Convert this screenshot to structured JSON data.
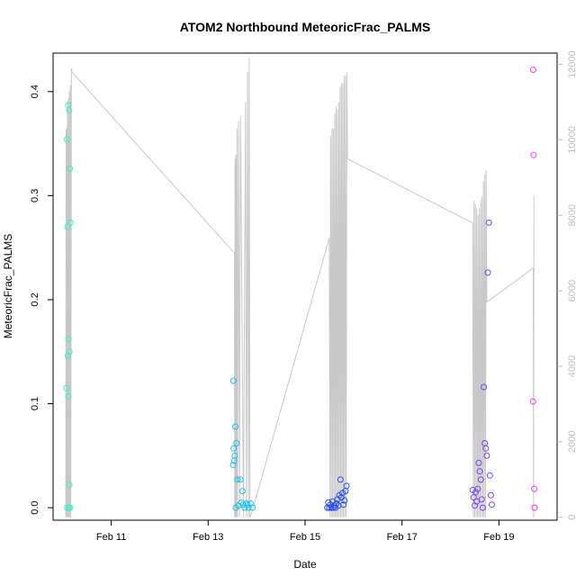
{
  "chart_data": {
    "type": "scatter",
    "title": "ATOM2 Northbound MeteoricFrac_PALMS",
    "xlabel": "Date",
    "ylabel": "MeteoricFrac_PALMS",
    "x_ticks": [
      "Feb 11",
      "Feb 13",
      "Feb 15",
      "Feb 17",
      "Feb 19"
    ],
    "y_ticks": [
      "0.0",
      "0.1",
      "0.2",
      "0.3",
      "0.4"
    ],
    "y2_ticks": [
      "0",
      "2000",
      "4000",
      "6000",
      "8000",
      "10000",
      "12000"
    ],
    "xlim": [
      "2017-02-09 19:12",
      "2017-02-20 04:48"
    ],
    "ylim": [
      -0.012,
      0.437
    ],
    "y2lim": [
      -80,
      12300
    ],
    "grid": false,
    "line_color": "#c8c8c8",
    "secondary_axis_color": "#bdbdbd",
    "series": [
      {
        "color": "#35f2c8",
        "points": [
          [
            "2017-02-10 02:00",
            0.354
          ],
          [
            "2017-02-10 02:20",
            0.27
          ],
          [
            "2017-02-10 02:40",
            0.387
          ],
          [
            "2017-02-10 03:10",
            0.382
          ],
          [
            "2017-02-10 03:30",
            0.326
          ],
          [
            "2017-02-10 03:50",
            0.274
          ],
          [
            "2017-02-10 02:50",
            0.162
          ],
          [
            "2017-02-10 03:20",
            0.15
          ],
          [
            "2017-02-10 02:30",
            0.146
          ],
          [
            "2017-02-10 01:50",
            0.115
          ],
          [
            "2017-02-10 02:45",
            0.107
          ],
          [
            "2017-02-10 03:15",
            0.022
          ],
          [
            "2017-02-10 02:10",
            0.0
          ],
          [
            "2017-02-10 03:00",
            0.0
          ],
          [
            "2017-02-10 03:40",
            0.0
          ]
        ]
      },
      {
        "color": "#19c3ec",
        "points": [
          [
            "2017-02-13 12:30",
            0.122
          ],
          [
            "2017-02-13 13:30",
            0.078
          ],
          [
            "2017-02-13 14:00",
            0.062
          ],
          [
            "2017-02-13 12:40",
            0.057
          ],
          [
            "2017-02-13 13:10",
            0.05
          ],
          [
            "2017-02-13 12:50",
            0.045
          ],
          [
            "2017-02-13 12:20",
            0.041
          ],
          [
            "2017-02-13 14:30",
            0.027
          ],
          [
            "2017-02-13 16:00",
            0.027
          ],
          [
            "2017-02-13 17:00",
            0.016
          ],
          [
            "2017-02-13 13:40",
            0.0
          ],
          [
            "2017-02-13 15:00",
            0.002
          ],
          [
            "2017-02-13 16:20",
            0.005
          ],
          [
            "2017-02-13 17:20",
            0.003
          ],
          [
            "2017-02-13 18:00",
            0.0
          ],
          [
            "2017-02-13 18:40",
            0.004
          ],
          [
            "2017-02-13 19:30",
            0.003
          ],
          [
            "2017-02-13 20:00",
            0.0
          ],
          [
            "2017-02-13 21:00",
            0.004
          ],
          [
            "2017-02-13 22:00",
            0.0
          ]
        ]
      },
      {
        "color": "#2a4df0",
        "points": [
          [
            "2017-02-15 11:00",
            0.0
          ],
          [
            "2017-02-15 11:30",
            0.005
          ],
          [
            "2017-02-15 12:00",
            0.0
          ],
          [
            "2017-02-15 12:30",
            0.003
          ],
          [
            "2017-02-15 13:00",
            0.0
          ],
          [
            "2017-02-15 13:30",
            0.006
          ],
          [
            "2017-02-15 14:00",
            0.0
          ],
          [
            "2017-02-15 14:30",
            0.002
          ],
          [
            "2017-02-15 15:00",
            0.0
          ],
          [
            "2017-02-15 15:30",
            0.004
          ],
          [
            "2017-02-15 16:00",
            0.008
          ],
          [
            "2017-02-15 16:30",
            0.002
          ],
          [
            "2017-02-15 17:00",
            0.012
          ],
          [
            "2017-02-15 17:30",
            0.027
          ],
          [
            "2017-02-15 18:00",
            0.01
          ],
          [
            "2017-02-15 18:30",
            0.014
          ],
          [
            "2017-02-15 19:00",
            0.003
          ],
          [
            "2017-02-15 19:30",
            0.007
          ],
          [
            "2017-02-15 20:00",
            0.016
          ],
          [
            "2017-02-15 20:30",
            0.021
          ]
        ]
      },
      {
        "color": "#7b3df0",
        "points": [
          [
            "2017-02-18 11:00",
            0.017
          ],
          [
            "2017-02-18 11:30",
            0.01
          ],
          [
            "2017-02-18 12:00",
            0.002
          ],
          [
            "2017-02-18 12:30",
            0.015
          ],
          [
            "2017-02-18 13:00",
            0.006
          ],
          [
            "2017-02-18 13:30",
            0.018
          ],
          [
            "2017-02-18 14:00",
            0.043
          ],
          [
            "2017-02-18 14:30",
            0.035
          ],
          [
            "2017-02-18 15:00",
            0.027
          ],
          [
            "2017-02-18 15:30",
            0.008
          ],
          [
            "2017-02-18 16:00",
            0.0
          ],
          [
            "2017-02-18 16:30",
            0.116
          ],
          [
            "2017-02-18 17:00",
            0.062
          ],
          [
            "2017-02-18 17:30",
            0.057
          ],
          [
            "2017-02-18 18:00",
            0.05
          ],
          [
            "2017-02-18 18:30",
            0.226
          ],
          [
            "2017-02-18 19:00",
            0.274
          ],
          [
            "2017-02-18 19:30",
            0.031
          ],
          [
            "2017-02-18 20:00",
            0.012
          ],
          [
            "2017-02-18 20:30",
            0.003
          ]
        ]
      },
      {
        "color": "#e23df0",
        "points": [
          [
            "2017-02-19 17:00",
            0.421
          ],
          [
            "2017-02-19 17:10",
            0.339
          ],
          [
            "2017-02-19 16:50",
            0.102
          ],
          [
            "2017-02-19 17:30",
            0.018
          ],
          [
            "2017-02-19 17:40",
            0.0
          ]
        ]
      }
    ],
    "secondary_line": [
      [
        "2017-02-10 01:30",
        0
      ],
      [
        "2017-02-10 01:40",
        10300
      ],
      [
        "2017-02-10 01:50",
        0
      ],
      [
        "2017-02-10 02:00",
        10300
      ],
      [
        "2017-02-10 02:10",
        0
      ],
      [
        "2017-02-10 02:20",
        11000
      ],
      [
        "2017-02-10 02:30",
        0
      ],
      [
        "2017-02-10 02:45",
        11100
      ],
      [
        "2017-02-10 03:00",
        0
      ],
      [
        "2017-02-10 03:15",
        11300
      ],
      [
        "2017-02-10 03:30",
        0
      ],
      [
        "2017-02-10 03:45",
        11450
      ],
      [
        "2017-02-10 04:00",
        0
      ],
      [
        "2017-02-10 04:15",
        11900
      ],
      [
        "2017-02-10 04:30",
        11800
      ],
      [
        "2017-02-13 13:00",
        7000
      ],
      [
        "2017-02-13 13:10",
        0
      ],
      [
        "2017-02-13 13:20",
        9500
      ],
      [
        "2017-02-13 13:30",
        0
      ],
      [
        "2017-02-13 13:45",
        9600
      ],
      [
        "2017-02-13 14:00",
        0
      ],
      [
        "2017-02-13 14:15",
        10300
      ],
      [
        "2017-02-13 14:30",
        0
      ],
      [
        "2017-02-13 15:00",
        10500
      ],
      [
        "2017-02-13 15:30",
        0
      ],
      [
        "2017-02-13 16:00",
        10600
      ],
      [
        "2017-02-13 17:30",
        0
      ],
      [
        "2017-02-13 18:30",
        11000
      ],
      [
        "2017-02-13 19:00",
        0
      ],
      [
        "2017-02-13 19:30",
        11800
      ],
      [
        "2017-02-13 20:00",
        0
      ],
      [
        "2017-02-13 20:20",
        12200
      ],
      [
        "2017-02-13 20:40",
        0
      ],
      [
        "2017-02-13 21:30",
        100
      ],
      [
        "2017-02-15 12:00",
        7400
      ],
      [
        "2017-02-15 12:20",
        0
      ],
      [
        "2017-02-15 12:40",
        10100
      ],
      [
        "2017-02-15 13:00",
        0
      ],
      [
        "2017-02-15 13:20",
        10300
      ],
      [
        "2017-02-15 13:40",
        0
      ],
      [
        "2017-02-15 14:00",
        10300
      ],
      [
        "2017-02-15 14:20",
        0
      ],
      [
        "2017-02-15 14:40",
        10700
      ],
      [
        "2017-02-15 15:00",
        0
      ],
      [
        "2017-02-15 15:20",
        10900
      ],
      [
        "2017-02-15 15:40",
        0
      ],
      [
        "2017-02-15 16:00",
        10800
      ],
      [
        "2017-02-15 16:20",
        0
      ],
      [
        "2017-02-15 16:40",
        11000
      ],
      [
        "2017-02-15 17:00",
        0
      ],
      [
        "2017-02-15 17:20",
        11400
      ],
      [
        "2017-02-15 17:40",
        0
      ],
      [
        "2017-02-15 18:00",
        11500
      ],
      [
        "2017-02-15 18:20",
        0
      ],
      [
        "2017-02-15 18:40",
        11500
      ],
      [
        "2017-02-15 19:00",
        0
      ],
      [
        "2017-02-15 19:20",
        11700
      ],
      [
        "2017-02-15 19:40",
        0
      ],
      [
        "2017-02-15 20:00",
        11700
      ],
      [
        "2017-02-15 20:20",
        0
      ],
      [
        "2017-02-15 20:40",
        11800
      ],
      [
        "2017-02-15 21:00",
        9500
      ],
      [
        "2017-02-18 11:00",
        7800
      ],
      [
        "2017-02-18 11:20",
        0
      ],
      [
        "2017-02-18 11:40",
        8400
      ],
      [
        "2017-02-18 12:00",
        0
      ],
      [
        "2017-02-18 12:20",
        8300
      ],
      [
        "2017-02-18 12:40",
        0
      ],
      [
        "2017-02-18 13:00",
        8200
      ],
      [
        "2017-02-18 13:20",
        0
      ],
      [
        "2017-02-18 13:40",
        8000
      ],
      [
        "2017-02-18 14:00",
        0
      ],
      [
        "2017-02-18 14:20",
        8200
      ],
      [
        "2017-02-18 14:40",
        0
      ],
      [
        "2017-02-18 15:00",
        8400
      ],
      [
        "2017-02-18 15:20",
        0
      ],
      [
        "2017-02-18 15:40",
        8500
      ],
      [
        "2017-02-18 16:00",
        0
      ],
      [
        "2017-02-18 16:20",
        8900
      ],
      [
        "2017-02-18 16:40",
        0
      ],
      [
        "2017-02-18 17:00",
        9100
      ],
      [
        "2017-02-18 17:20",
        0
      ],
      [
        "2017-02-18 17:40",
        9200
      ],
      [
        "2017-02-18 18:00",
        5700
      ],
      [
        "2017-02-19 17:00",
        6600
      ],
      [
        "2017-02-19 17:10",
        0
      ],
      [
        "2017-02-19 17:20",
        8500
      ],
      [
        "2017-02-19 17:30",
        8500
      ]
    ]
  }
}
